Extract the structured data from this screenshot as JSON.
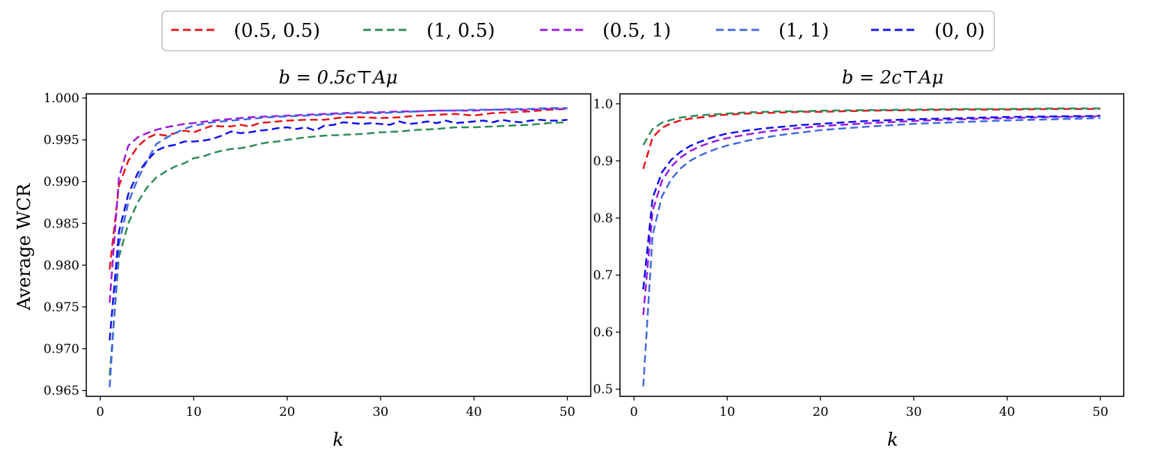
{
  "legend": {
    "entries": [
      {
        "label": "(0.5, 0.5)",
        "color": "#e8141b"
      },
      {
        "label": "(1, 0.5)",
        "color": "#2e8b57"
      },
      {
        "label": "(0.5, 1)",
        "color": "#9a1ae0"
      },
      {
        "label": "(1, 1)",
        "color": "#4169e1"
      },
      {
        "label": "(0, 0)",
        "color": "#1010ee"
      }
    ]
  },
  "chart_data": [
    {
      "type": "line",
      "title": "b = 0.5c⊤Aμ",
      "xlabel": "k",
      "ylabel": "Average WCR",
      "xlim": [
        -1.5,
        52.5
      ],
      "ylim": [
        0.9643,
        1.0005
      ],
      "xticks": [
        0,
        10,
        20,
        30,
        40,
        50
      ],
      "xtick_labels": [
        "0",
        "10",
        "20",
        "30",
        "40",
        "50"
      ],
      "yticks": [
        0.965,
        0.97,
        0.975,
        0.98,
        0.985,
        0.99,
        0.995,
        1.0
      ],
      "ytick_labels": [
        "0.965",
        "0.970",
        "0.975",
        "0.980",
        "0.985",
        "0.990",
        "0.995",
        "1.000"
      ],
      "series": [
        {
          "name": "(0.5, 0.5)",
          "color": "#e8141b",
          "x": [
            1,
            2,
            3,
            4,
            5,
            6,
            7,
            8,
            9,
            10,
            11,
            12,
            13,
            14,
            15,
            16,
            17,
            18,
            19,
            20,
            22,
            24,
            26,
            28,
            30,
            32,
            34,
            36,
            38,
            40,
            42,
            44,
            46,
            48,
            50
          ],
          "y": [
            0.9795,
            0.9895,
            0.9925,
            0.9942,
            0.9952,
            0.9957,
            0.9955,
            0.9958,
            0.9961,
            0.9959,
            0.9963,
            0.9967,
            0.9966,
            0.9966,
            0.9968,
            0.9966,
            0.997,
            0.9971,
            0.9972,
            0.9973,
            0.9974,
            0.9974,
            0.9977,
            0.9977,
            0.9976,
            0.9977,
            0.9979,
            0.998,
            0.9981,
            0.9979,
            0.9982,
            0.9983,
            0.9984,
            0.9986,
            0.9987
          ]
        },
        {
          "name": "(1, 0.5)",
          "color": "#2e8b57",
          "x": [
            1,
            2,
            3,
            4,
            5,
            6,
            7,
            8,
            9,
            10,
            11,
            12,
            13,
            14,
            15,
            16,
            17,
            18,
            19,
            20,
            22,
            24,
            26,
            28,
            30,
            32,
            34,
            36,
            38,
            40,
            42,
            44,
            46,
            48,
            50
          ],
          "y": [
            0.9668,
            0.981,
            0.985,
            0.9875,
            0.9893,
            0.9905,
            0.9912,
            0.9918,
            0.9922,
            0.9928,
            0.993,
            0.9934,
            0.9937,
            0.9939,
            0.994,
            0.9942,
            0.9945,
            0.9947,
            0.9948,
            0.995,
            0.9953,
            0.9955,
            0.9956,
            0.9957,
            0.9959,
            0.996,
            0.9962,
            0.9963,
            0.9965,
            0.9965,
            0.9966,
            0.9967,
            0.9968,
            0.997,
            0.9971
          ]
        },
        {
          "name": "(0.5, 1)",
          "color": "#9a1ae0",
          "x": [
            1,
            2,
            3,
            4,
            5,
            6,
            7,
            8,
            9,
            10,
            12,
            14,
            16,
            18,
            20,
            22,
            24,
            26,
            28,
            30,
            32,
            34,
            36,
            38,
            40,
            42,
            44,
            46,
            48,
            50
          ],
          "y": [
            0.9755,
            0.9905,
            0.9943,
            0.9953,
            0.9958,
            0.9962,
            0.9965,
            0.9967,
            0.9969,
            0.997,
            0.9973,
            0.9975,
            0.9977,
            0.9978,
            0.9979,
            0.998,
            0.9981,
            0.9982,
            0.9983,
            0.9983,
            0.9984,
            0.9984,
            0.9985,
            0.9985,
            0.9985,
            0.9986,
            0.9986,
            0.9986,
            0.9987,
            0.9987
          ]
        },
        {
          "name": "(1, 1)",
          "color": "#4169e1",
          "x": [
            1,
            2,
            3,
            4,
            5,
            6,
            7,
            8,
            9,
            10,
            12,
            14,
            16,
            18,
            20,
            22,
            24,
            26,
            28,
            30,
            32,
            34,
            36,
            38,
            40,
            42,
            44,
            46,
            48,
            50
          ],
          "y": [
            0.9654,
            0.9825,
            0.9875,
            0.9903,
            0.9925,
            0.9945,
            0.9952,
            0.9958,
            0.9963,
            0.9967,
            0.9971,
            0.9973,
            0.9975,
            0.9977,
            0.9978,
            0.9979,
            0.998,
            0.9981,
            0.9982,
            0.9982,
            0.9983,
            0.9984,
            0.9985,
            0.9985,
            0.9986,
            0.9986,
            0.9987,
            0.9987,
            0.9988,
            0.9988
          ]
        },
        {
          "name": "(0, 0)",
          "color": "#1010ee",
          "x": [
            1,
            2,
            3,
            4,
            5,
            6,
            7,
            8,
            9,
            10,
            11,
            12,
            13,
            14,
            15,
            16,
            17,
            18,
            19,
            20,
            21,
            22,
            23,
            24,
            25,
            26,
            27,
            28,
            29,
            30,
            31,
            32,
            33,
            34,
            35,
            36,
            37,
            38,
            39,
            40,
            41,
            42,
            43,
            44,
            45,
            46,
            47,
            48,
            49,
            50
          ],
          "y": [
            0.971,
            0.984,
            0.9885,
            0.991,
            0.9925,
            0.9937,
            0.9942,
            0.9944,
            0.9948,
            0.9948,
            0.9949,
            0.9951,
            0.9955,
            0.996,
            0.9958,
            0.9959,
            0.9961,
            0.9962,
            0.9964,
            0.9965,
            0.9963,
            0.9965,
            0.9961,
            0.9967,
            0.9968,
            0.9971,
            0.997,
            0.9969,
            0.997,
            0.9969,
            0.9968,
            0.9972,
            0.9969,
            0.997,
            0.9972,
            0.997,
            0.9973,
            0.997,
            0.9971,
            0.9972,
            0.9973,
            0.9971,
            0.9974,
            0.9972,
            0.9971,
            0.9973,
            0.9974,
            0.9973,
            0.9973,
            0.9974
          ]
        }
      ]
    },
    {
      "type": "line",
      "title": "b = 2c⊤Aμ",
      "xlabel": "k",
      "ylabel": "",
      "xlim": [
        -1.5,
        52.5
      ],
      "ylim": [
        0.4875,
        1.0175
      ],
      "xticks": [
        0,
        10,
        20,
        30,
        40,
        50
      ],
      "xtick_labels": [
        "0",
        "10",
        "20",
        "30",
        "40",
        "50"
      ],
      "yticks": [
        0.5,
        0.6,
        0.7,
        0.8,
        0.9,
        1.0
      ],
      "ytick_labels": [
        "0.5",
        "0.6",
        "0.7",
        "0.8",
        "0.9",
        "1.0"
      ],
      "series": [
        {
          "name": "(0.5, 0.5)",
          "color": "#e8141b",
          "x": [
            1,
            2,
            3,
            4,
            5,
            6,
            7,
            8,
            9,
            10,
            12,
            14,
            16,
            18,
            20,
            25,
            30,
            35,
            40,
            45,
            50
          ],
          "y": [
            0.886,
            0.941,
            0.958,
            0.966,
            0.971,
            0.974,
            0.976,
            0.978,
            0.98,
            0.981,
            0.983,
            0.984,
            0.985,
            0.986,
            0.986,
            0.988,
            0.989,
            0.99,
            0.99,
            0.991,
            0.991
          ]
        },
        {
          "name": "(1, 0.5)",
          "color": "#2e8b57",
          "x": [
            1,
            2,
            3,
            4,
            5,
            6,
            7,
            8,
            9,
            10,
            12,
            14,
            16,
            18,
            20,
            25,
            30,
            35,
            40,
            45,
            50
          ],
          "y": [
            0.928,
            0.956,
            0.967,
            0.972,
            0.976,
            0.978,
            0.98,
            0.981,
            0.982,
            0.983,
            0.985,
            0.986,
            0.987,
            0.987,
            0.988,
            0.989,
            0.99,
            0.991,
            0.991,
            0.992,
            0.992
          ]
        },
        {
          "name": "(0.5, 1)",
          "color": "#9a1ae0",
          "x": [
            1,
            2,
            3,
            4,
            5,
            6,
            7,
            8,
            9,
            10,
            12,
            14,
            16,
            18,
            20,
            25,
            30,
            35,
            40,
            45,
            50
          ],
          "y": [
            0.63,
            0.812,
            0.865,
            0.89,
            0.906,
            0.917,
            0.925,
            0.931,
            0.936,
            0.94,
            0.946,
            0.951,
            0.955,
            0.958,
            0.961,
            0.966,
            0.97,
            0.973,
            0.975,
            0.977,
            0.978
          ]
        },
        {
          "name": "(1, 1)",
          "color": "#4169e1",
          "x": [
            1,
            2,
            3,
            4,
            5,
            6,
            7,
            8,
            9,
            10,
            12,
            14,
            16,
            18,
            20,
            25,
            30,
            35,
            40,
            45,
            50
          ],
          "y": [
            0.505,
            0.77,
            0.838,
            0.868,
            0.887,
            0.9,
            0.909,
            0.916,
            0.922,
            0.927,
            0.935,
            0.941,
            0.946,
            0.95,
            0.954,
            0.96,
            0.965,
            0.968,
            0.971,
            0.973,
            0.975
          ]
        },
        {
          "name": "(0, 0)",
          "color": "#1010ee",
          "x": [
            1,
            2,
            3,
            4,
            5,
            6,
            7,
            8,
            9,
            10,
            12,
            14,
            16,
            18,
            20,
            25,
            30,
            35,
            40,
            45,
            50
          ],
          "y": [
            0.675,
            0.835,
            0.88,
            0.902,
            0.916,
            0.926,
            0.933,
            0.939,
            0.944,
            0.948,
            0.953,
            0.957,
            0.96,
            0.963,
            0.965,
            0.97,
            0.973,
            0.975,
            0.977,
            0.978,
            0.979
          ]
        }
      ]
    }
  ]
}
